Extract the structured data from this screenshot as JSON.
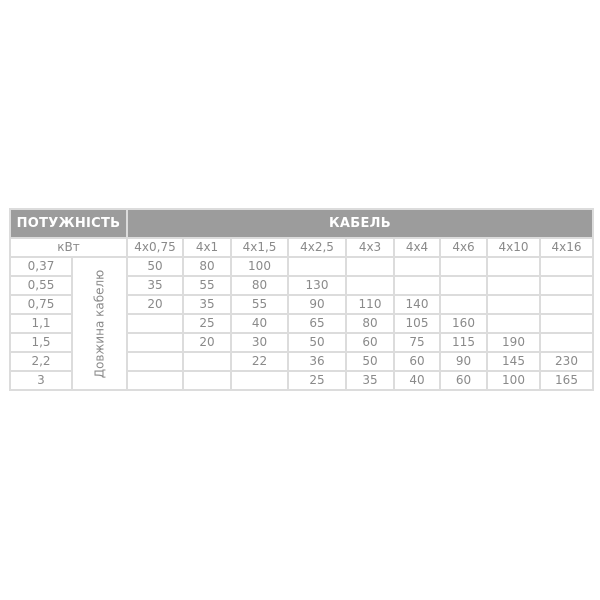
{
  "header": {
    "power": "ПОТУЖНІСТЬ",
    "cable": "КАБЕЛЬ"
  },
  "unit_label": "кВт",
  "length_label": "Довжина кабелю",
  "cable_sections": [
    "4x0,75",
    "4x1",
    "4x1,5",
    "4x2,5",
    "4x3",
    "4x4",
    "4x6",
    "4x10",
    "4x16"
  ],
  "rows": [
    {
      "power": "0,37",
      "values": [
        "50",
        "80",
        "100",
        "",
        "",
        "",
        "",
        "",
        ""
      ]
    },
    {
      "power": "0,55",
      "values": [
        "35",
        "55",
        "80",
        "130",
        "",
        "",
        "",
        "",
        ""
      ]
    },
    {
      "power": "0,75",
      "values": [
        "20",
        "35",
        "55",
        "90",
        "110",
        "140",
        "",
        "",
        ""
      ]
    },
    {
      "power": "1,1",
      "values": [
        "",
        "25",
        "40",
        "65",
        "80",
        "105",
        "160",
        "",
        ""
      ]
    },
    {
      "power": "1,5",
      "values": [
        "",
        "20",
        "30",
        "50",
        "60",
        "75",
        "115",
        "190",
        ""
      ]
    },
    {
      "power": "2,2",
      "values": [
        "",
        "",
        "22",
        "36",
        "50",
        "60",
        "90",
        "145",
        "230"
      ]
    },
    {
      "power": "3",
      "values": [
        "",
        "",
        "",
        "25",
        "35",
        "40",
        "60",
        "100",
        "165"
      ]
    }
  ],
  "colors": {
    "header_bg": "#9c9c9c",
    "border": "#dcdcdc",
    "text": "#8a8a8a"
  }
}
